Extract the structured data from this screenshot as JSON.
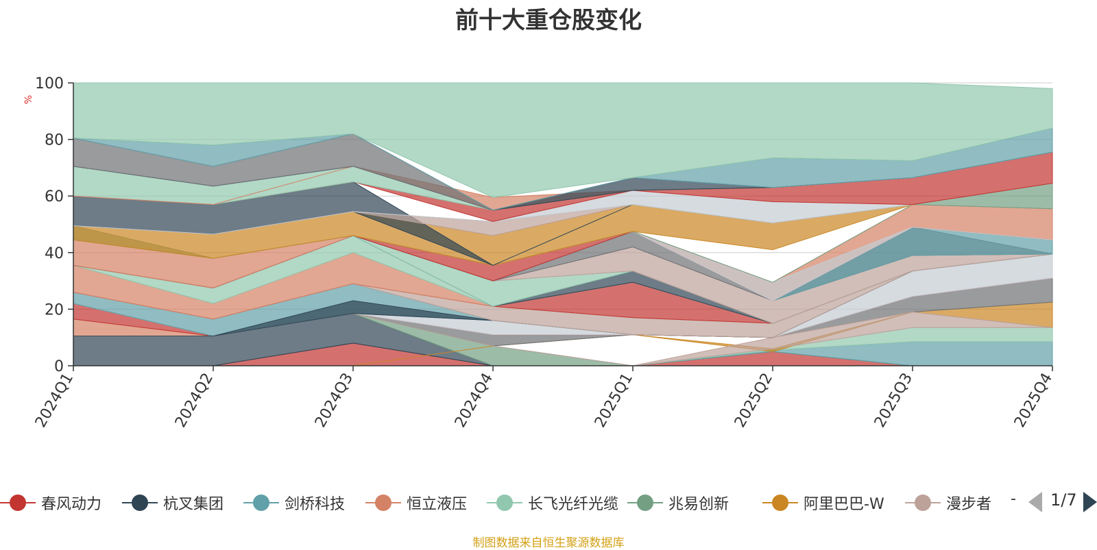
{
  "title": "前十大重仓股变化",
  "footer": "制图数据来自恒生聚源数据库",
  "legend_more": "-",
  "pager": {
    "text": "1/7"
  },
  "colors": {
    "春风动力": "#c23531",
    "杭叉集团": "#2f4554",
    "剑桥科技": "#61a0a8",
    "恒立液压": "#d48265",
    "长飞光纤光缆": "#91c7ae",
    "兆易创新": "#749f83",
    "阿里巴巴-W": "#ca8622",
    "漫步者": "#bda29a",
    "grey": "#6e7074",
    "light": "#c4ccd3"
  },
  "chart_data": {
    "type": "area",
    "title": "前十大重仓股变化",
    "ylabel": "%",
    "ylim": [
      0,
      100
    ],
    "yticks": [
      0,
      20,
      40,
      60,
      80,
      100
    ],
    "categories": [
      "2024Q1",
      "2024Q2",
      "2024Q3",
      "2024Q4",
      "2025Q1",
      "2025Q2",
      "2025Q3",
      "2025Q4"
    ],
    "legend": [
      "春风动力",
      "杭叉集团",
      "剑桥科技",
      "恒立液压",
      "长飞光纤光缆",
      "兆易创新",
      "阿里巴巴-W",
      "漫步者"
    ],
    "legend_position": "bottom",
    "bands": [
      {
        "color": "春风动力",
        "lower": [
          0,
          0,
          0,
          0,
          0,
          0,
          0,
          0
        ],
        "upper": [
          0,
          0,
          8,
          0,
          0,
          5,
          0,
          0
        ]
      },
      {
        "color": "杭叉集团",
        "lower": [
          0,
          0,
          8,
          0,
          0,
          5,
          0,
          0
        ],
        "upper": [
          10.5,
          10.5,
          18.5,
          0,
          0,
          5,
          0,
          0
        ]
      },
      {
        "color": "兆易创新",
        "lower": [
          10.5,
          10.5,
          18.5,
          0,
          0,
          5,
          0,
          0
        ],
        "upper": [
          10.5,
          10.5,
          18.5,
          7,
          0,
          5,
          0,
          0
        ]
      },
      {
        "color": "剑桥科技",
        "lower": [
          0,
          0,
          0,
          0,
          0,
          5,
          0,
          0
        ],
        "upper": [
          0,
          0,
          0,
          0,
          0,
          5.5,
          8.5,
          8.5
        ]
      },
      {
        "color": "长飞光纤光缆",
        "lower": [
          0,
          0,
          0,
          0,
          0,
          5.5,
          8.5,
          8.5
        ],
        "upper": [
          0,
          0,
          0,
          0,
          0,
          6,
          13.5,
          13.5
        ]
      },
      {
        "color": "阿里巴巴-W",
        "lower": [
          0,
          0,
          0,
          7,
          11,
          5,
          19,
          13.5
        ],
        "upper": [
          0,
          0,
          0,
          7,
          11,
          6,
          19,
          22.5
        ]
      },
      {
        "color": "grey",
        "lower": [
          10.5,
          10.5,
          18.5,
          7,
          11,
          10,
          19,
          22.5
        ],
        "upper": [
          10.5,
          10.5,
          18.5,
          11,
          11,
          10,
          24.5,
          31
        ]
      },
      {
        "color": "漫步者",
        "lower": [
          10.5,
          10.5,
          18.5,
          7,
          0,
          6,
          13.5,
          13.5
        ],
        "upper": [
          10.5,
          10.5,
          18.5,
          7,
          0,
          10,
          19,
          13.5
        ]
      },
      {
        "color": "恒立液压",
        "lower": [
          10.5,
          10.5,
          18.5,
          11,
          11,
          10,
          24.5,
          31
        ],
        "upper": [
          16.5,
          10.5,
          18.5,
          11,
          11,
          10,
          24.5,
          31
        ]
      },
      {
        "color": "春风动力",
        "lower": [
          16.5,
          10.5,
          18.5,
          11,
          11,
          10,
          24.5,
          31
        ],
        "upper": [
          22,
          10.5,
          18.5,
          11,
          11,
          10,
          24.5,
          31
        ]
      },
      {
        "color": "light",
        "lower": [
          22,
          10.5,
          18.5,
          11,
          11,
          10,
          24.5,
          31
        ],
        "upper": [
          22,
          10.5,
          18.5,
          16,
          11,
          10,
          33.5,
          39.5
        ]
      },
      {
        "color": "剑桥科技",
        "lower": [
          22,
          10.5,
          18.5,
          16,
          11,
          10,
          33.5,
          39.5
        ],
        "upper": [
          26,
          16.5,
          29,
          16,
          11,
          10,
          33.5,
          39.5
        ]
      },
      {
        "color": "杭叉集团",
        "lower": [
          10.5,
          10.5,
          18.5,
          16,
          11,
          10,
          33.5,
          39.5
        ],
        "upper": [
          10.5,
          10.5,
          23,
          16,
          11,
          10,
          33.5,
          39.5
        ]
      },
      {
        "color": "漫步者",
        "lower": [
          26,
          16.5,
          29,
          16,
          11,
          10,
          33.5,
          39.5
        ],
        "upper": [
          26,
          16.5,
          29,
          21,
          17,
          15,
          33.5,
          39.5
        ]
      },
      {
        "color": "春风动力",
        "lower": [
          26,
          16.5,
          29,
          21,
          17,
          15,
          33.5,
          39.5
        ],
        "upper": [
          26,
          16.5,
          29,
          21,
          29.5,
          15,
          33.5,
          39.5
        ]
      },
      {
        "color": "恒立液压",
        "lower": [
          26,
          16.5,
          29,
          21,
          29.5,
          15,
          33.5,
          39.5
        ],
        "upper": [
          35.5,
          22,
          40,
          21,
          29.5,
          15,
          33.5,
          39.5
        ]
      },
      {
        "color": "长飞光纤光缆",
        "lower": [
          35.5,
          22,
          40,
          21,
          29.5,
          15,
          33.5,
          39.5
        ],
        "upper": [
          35.5,
          27.5,
          46,
          21,
          29.5,
          15,
          33.5,
          39.5
        ]
      },
      {
        "color": "杭叉集团",
        "lower": [
          35.5,
          27.5,
          46,
          21,
          29.5,
          15,
          33.5,
          39.5
        ],
        "upper": [
          35.5,
          27.5,
          46,
          21,
          33.5,
          15,
          33.5,
          39.5
        ]
      },
      {
        "color": "长飞光纤光缆",
        "lower": [
          35.5,
          27.5,
          46,
          21,
          33.5,
          15,
          33.5,
          39.5
        ],
        "upper": [
          35.5,
          27.5,
          46,
          30,
          33.5,
          15,
          33.5,
          39.5
        ]
      },
      {
        "color": "漫步者",
        "lower": [
          35.5,
          27.5,
          46,
          30,
          33.5,
          15,
          33.5,
          39.5
        ],
        "upper": [
          35.5,
          27.5,
          46,
          30,
          42,
          23,
          39,
          39.5
        ]
      },
      {
        "color": "grey",
        "lower": [
          35.5,
          27.5,
          46,
          30,
          42,
          23,
          39,
          39.5
        ],
        "upper": [
          35.5,
          27.5,
          46,
          30,
          47.5,
          23,
          49,
          39.5
        ]
      },
      {
        "color": "剑桥科技",
        "lower": [
          35.5,
          27.5,
          46,
          30,
          47.5,
          23,
          39,
          39.5
        ],
        "upper": [
          35.5,
          27.5,
          46,
          30,
          47.5,
          23,
          49,
          44.5
        ]
      },
      {
        "color": "春风动力",
        "lower": [
          35.5,
          27.5,
          46,
          30,
          47.5,
          23,
          49,
          44.5
        ],
        "upper": [
          35.5,
          27.5,
          46,
          35.5,
          47.5,
          23,
          49,
          44.5
        ]
      },
      {
        "color": "恒立液压",
        "lower": [
          35.5,
          27.5,
          46,
          35.5,
          47.5,
          23,
          49,
          44.5
        ],
        "upper": [
          44.5,
          38,
          46,
          35.5,
          47.5,
          29.5,
          57,
          55.5
        ]
      },
      {
        "color": "light",
        "lower": [
          44.5,
          38,
          46,
          35.5,
          47.5,
          23,
          49,
          44.5
        ],
        "upper": [
          44.5,
          38,
          46,
          35.5,
          47.5,
          29.5,
          49,
          44.5
        ]
      },
      {
        "color": "兆易创新",
        "lower": [
          44.5,
          38,
          46,
          35.5,
          47.5,
          29.5,
          57,
          55.5
        ],
        "upper": [
          49.5,
          38,
          46,
          35.5,
          47.5,
          29.5,
          57,
          64.5
        ]
      },
      {
        "color": "阿里巴巴-W",
        "lower": [
          44.5,
          38,
          46,
          35.5,
          47.5,
          41,
          57,
          64.5
        ],
        "upper": [
          49.5,
          46.5,
          54.5,
          46,
          57,
          50.5,
          57,
          64.5
        ]
      },
      {
        "color": "杭叉集团",
        "lower": [
          49.5,
          46.5,
          54.5,
          35.5,
          57,
          50.5,
          57,
          64.5
        ],
        "upper": [
          60,
          57,
          65,
          35.5,
          57,
          50.5,
          57,
          64.5
        ]
      },
      {
        "color": "漫步者",
        "lower": [
          49.5,
          46.5,
          54.5,
          46,
          57,
          50.5,
          57,
          64.5
        ],
        "upper": [
          49.5,
          46.5,
          54.5,
          51,
          57,
          50.5,
          57,
          64.5
        ]
      },
      {
        "color": "light",
        "lower": [
          49.5,
          46.5,
          54.5,
          51,
          57,
          50.5,
          57,
          64.5
        ],
        "upper": [
          49.5,
          46.5,
          54.5,
          51,
          62,
          58,
          57,
          64.5
        ]
      },
      {
        "color": "春风动力",
        "lower": [
          60,
          57,
          65,
          51,
          62,
          58,
          57,
          64.5
        ],
        "upper": [
          60,
          57,
          65,
          55,
          62,
          63,
          66.5,
          75.5
        ]
      },
      {
        "color": "长飞光纤光缆",
        "lower": [
          60,
          57,
          65,
          55,
          62,
          63,
          66.5,
          75.5
        ],
        "upper": [
          70.5,
          63.5,
          70.5,
          55,
          62,
          63,
          66.5,
          75.5
        ]
      },
      {
        "color": "恒立液压",
        "lower": [
          60,
          57,
          70.5,
          55,
          62,
          63,
          66.5,
          75.5
        ],
        "upper": [
          60,
          57,
          70.5,
          59.5,
          62,
          63,
          66.5,
          75.5
        ]
      },
      {
        "color": "杭叉集团",
        "lower": [
          70.5,
          63.5,
          70.5,
          55,
          62,
          63,
          66.5,
          75.5
        ],
        "upper": [
          70.5,
          63.5,
          70.5,
          55,
          66.5,
          63,
          66.5,
          75.5
        ]
      },
      {
        "color": "grey",
        "lower": [
          70.5,
          63.5,
          70.5,
          55,
          66.5,
          63,
          66.5,
          75.5
        ],
        "upper": [
          80.5,
          70.5,
          82,
          55,
          66.5,
          63,
          66.5,
          75.5
        ]
      },
      {
        "color": "剑桥科技",
        "lower": [
          80.5,
          70.5,
          82,
          55,
          66.5,
          63,
          66.5,
          75.5
        ],
        "upper": [
          80.5,
          78,
          82,
          55,
          66.5,
          73.5,
          72.5,
          84
        ]
      },
      {
        "color": "长飞光纤光缆",
        "lower": [
          80.5,
          78,
          82,
          59.5,
          66.5,
          73.5,
          72.5,
          84
        ],
        "upper": [
          100,
          100,
          100,
          100,
          100,
          100,
          100,
          98
        ]
      }
    ]
  }
}
